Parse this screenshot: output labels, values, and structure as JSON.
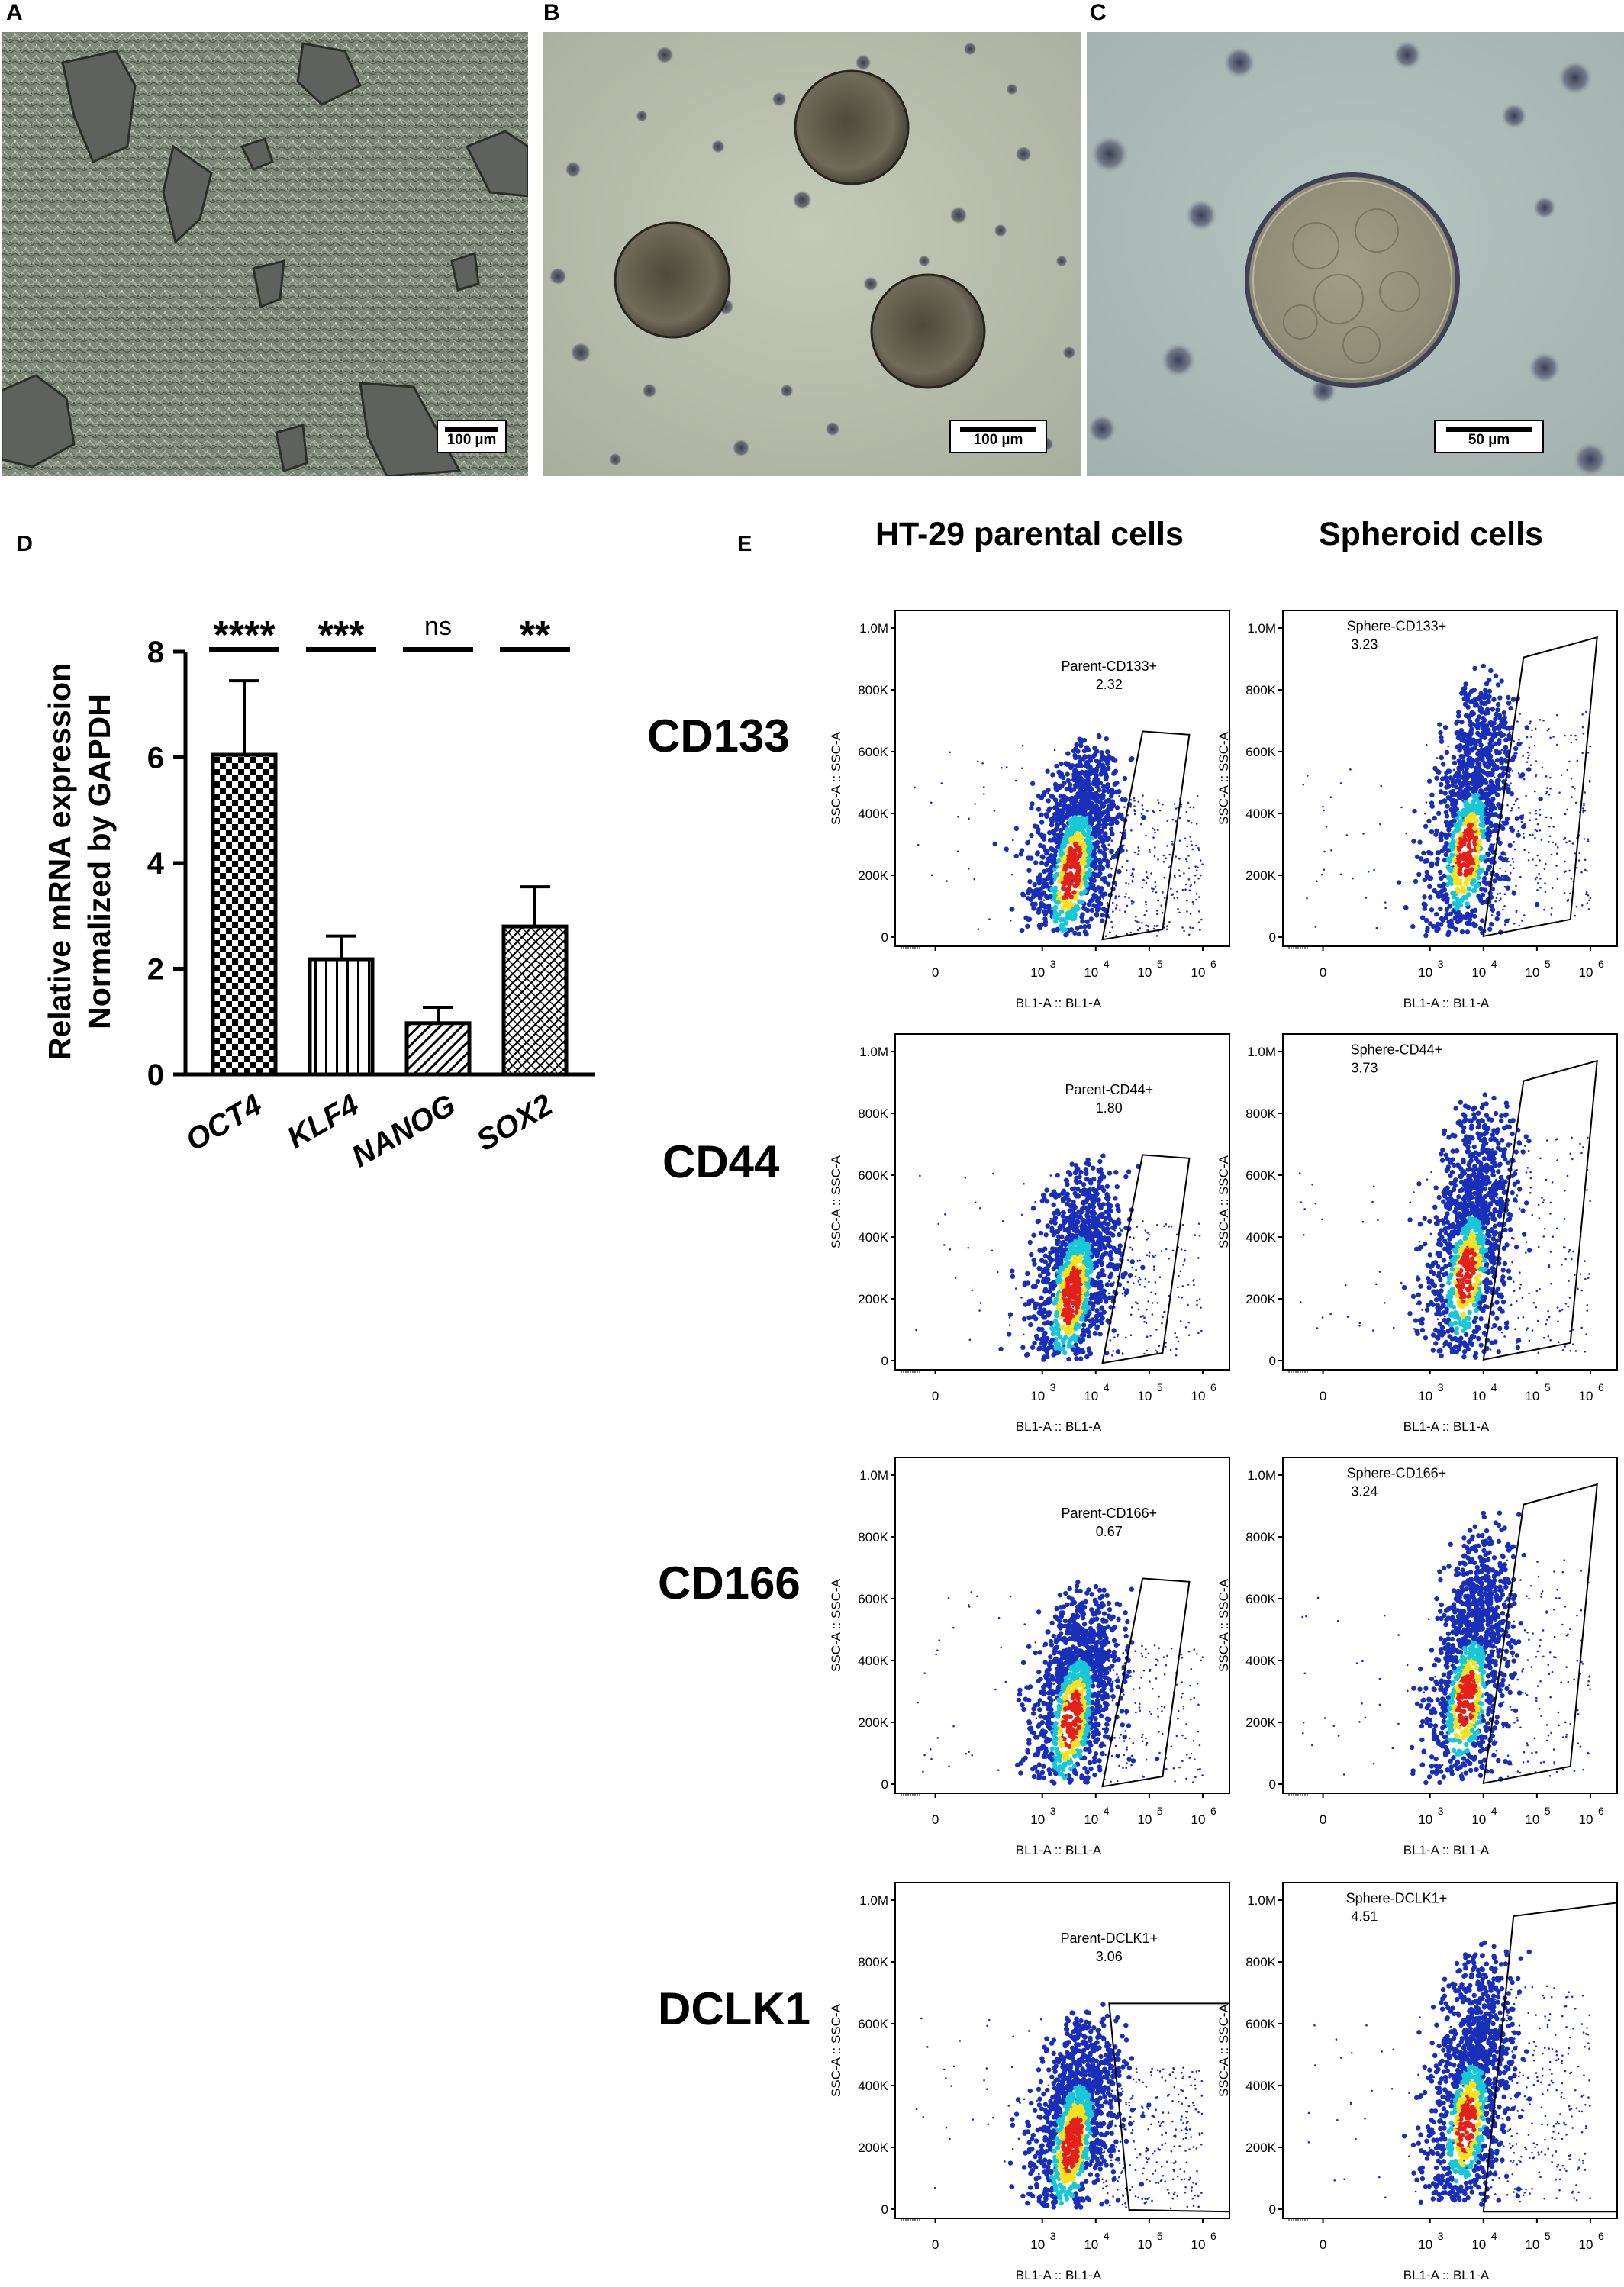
{
  "panels": {
    "A": {
      "letter": "A",
      "scale_bar": "100 µm"
    },
    "B": {
      "letter": "B",
      "scale_bar": "100 µm"
    },
    "C": {
      "letter": "C",
      "scale_bar": "50 µm"
    },
    "D": {
      "letter": "D"
    },
    "E": {
      "letter": "E"
    }
  },
  "flow_section": {
    "column_titles": [
      "HT-29 parental cells",
      "Spheroid cells"
    ],
    "markers": [
      "CD133",
      "CD44",
      "CD166",
      "DCLK1"
    ]
  },
  "colors": {
    "density_low": "#1a2fb8",
    "density_mid": "#16c8d8",
    "density_high": "#f6e21a",
    "density_peak": "#e4201b"
  },
  "chart_data": [
    {
      "type": "bar",
      "panel": "D",
      "categories": [
        "OCT4",
        "KLF4",
        "NANOG",
        "SOX2"
      ],
      "values": [
        6.05,
        2.18,
        0.97,
        2.8
      ],
      "error_upper": [
        7.45,
        2.62,
        1.27,
        3.55
      ],
      "significance": [
        "****",
        "***",
        "ns",
        "**"
      ],
      "bar_patterns": [
        "checkerboard",
        "vertical-stripes",
        "diagonal-stripes",
        "crosshatch"
      ],
      "ylabel": "Relative mRNA expression Normalized by GAPDH",
      "ylabel_lines": [
        "Relative mRNA expression",
        "Normalized by GAPDH"
      ],
      "ylim": [
        0,
        8
      ],
      "yticks": [
        0,
        2,
        4,
        6,
        8
      ],
      "grid": false
    },
    {
      "type": "scatter",
      "subtype": "flow-cytometry-density",
      "panel": "E",
      "xlabel": "BL1-A :: BL1-A",
      "ylabel": "SSC-A :: SSC-A",
      "x_scale": "log",
      "x_tick_labels": [
        "0",
        "10",
        "10",
        "10",
        "10"
      ],
      "x_tick_exponents": [
        "",
        "3",
        "4",
        "5",
        "6"
      ],
      "y_tick_labels": [
        "0",
        "200K",
        "400K",
        "600K",
        "800K",
        "1.0M"
      ],
      "y_ticks": [
        0,
        200000,
        400000,
        600000,
        800000,
        1000000
      ],
      "plots": [
        {
          "marker": "CD133",
          "sample": "parental",
          "gate_name": "Parent-CD133+",
          "gate_value": "2.32"
        },
        {
          "marker": "CD133",
          "sample": "spheroid",
          "gate_name": "Sphere-CD133+",
          "gate_value": "3.23"
        },
        {
          "marker": "CD44",
          "sample": "parental",
          "gate_name": "Parent-CD44+",
          "gate_value": "1.80"
        },
        {
          "marker": "CD44",
          "sample": "spheroid",
          "gate_name": "Sphere-CD44+",
          "gate_value": "3.73"
        },
        {
          "marker": "CD166",
          "sample": "parental",
          "gate_name": "Parent-CD166+",
          "gate_value": "0.67"
        },
        {
          "marker": "CD166",
          "sample": "spheroid",
          "gate_name": "Sphere-CD166+",
          "gate_value": "3.24"
        },
        {
          "marker": "DCLK1",
          "sample": "parental",
          "gate_name": "Parent-DCLK1+",
          "gate_value": "3.06"
        },
        {
          "marker": "DCLK1",
          "sample": "spheroid",
          "gate_name": "Sphere-DCLK1+",
          "gate_value": "4.51"
        }
      ]
    }
  ]
}
